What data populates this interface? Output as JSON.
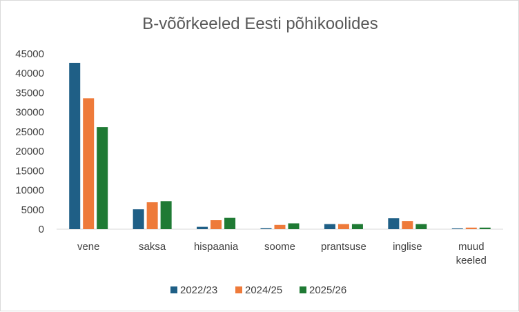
{
  "chart_data": {
    "type": "bar",
    "title": "B-võõrkeeled Eesti põhikoolides",
    "xlabel": "",
    "ylabel": "",
    "categories": [
      "vene",
      "saksa",
      "hispaania",
      "soome",
      "prantsuse",
      "inglise",
      "muud keeled"
    ],
    "series": [
      {
        "name": "2022/23",
        "color": "#1f5f86",
        "values": [
          42700,
          5100,
          600,
          250,
          1300,
          2800,
          200
        ]
      },
      {
        "name": "2024/25",
        "color": "#ee7a3a",
        "values": [
          33600,
          6900,
          2300,
          1100,
          1300,
          2100,
          400
        ]
      },
      {
        "name": "2025/26",
        "color": "#1f7a34",
        "values": [
          26200,
          7200,
          2900,
          1500,
          1300,
          1300,
          400
        ]
      }
    ],
    "ylim": [
      0,
      45000
    ],
    "yticks": [
      "0",
      "5000",
      "10000",
      "15000",
      "20000",
      "25000",
      "30000",
      "35000",
      "40000",
      "45000"
    ],
    "legend_position": "bottom",
    "grid": false
  }
}
